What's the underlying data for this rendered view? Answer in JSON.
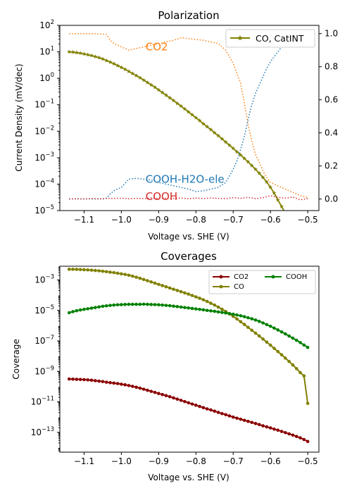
{
  "chart_data": [
    {
      "type": "line",
      "title": "Polarization",
      "xlabel": "Voltage vs. SHE (V)",
      "ylabel": "Current Density (mV/dec)",
      "xlim": [
        -1.165,
        -0.47
      ],
      "ylim_log": [
        -5,
        2
      ],
      "y2lim": [
        -0.07,
        1.05
      ],
      "x_ticks": [
        -1.1,
        -1.0,
        -0.9,
        -0.8,
        -0.7,
        -0.6,
        -0.5
      ],
      "x_tick_labels": [
        "−1.1",
        "−1.0",
        "−0.9",
        "−0.8",
        "−0.7",
        "−0.6",
        "−0.5"
      ],
      "y_ticks_exp": [
        -5,
        -4,
        -3,
        -2,
        -1,
        0,
        1,
        2
      ],
      "y_tick_labels": [
        "10",
        "10",
        "10",
        "10",
        "10",
        "10",
        "10",
        "10"
      ],
      "y_tick_exps": [
        "−5",
        "−4",
        "−3",
        "−2",
        "−1",
        "0",
        "1",
        "2"
      ],
      "y2_ticks": [
        0,
        0.2,
        0.4,
        0.6,
        0.8,
        1.0
      ],
      "y2_tick_labels": [
        "0.0",
        "0.2",
        "0.4",
        "0.6",
        "0.8",
        "1.0"
      ],
      "series": [
        {
          "name": "CO, CatINT",
          "axis": "left",
          "color": "#808000",
          "marker": "star",
          "x": [
            -1.14,
            -1.13,
            -1.12,
            -1.11,
            -1.1,
            -1.09,
            -1.08,
            -1.07,
            -1.06,
            -1.05,
            -1.04,
            -1.03,
            -1.02,
            -1.01,
            -1.0,
            -0.99,
            -0.98,
            -0.97,
            -0.96,
            -0.95,
            -0.94,
            -0.93,
            -0.92,
            -0.91,
            -0.9,
            -0.89,
            -0.88,
            -0.87,
            -0.86,
            -0.85,
            -0.84,
            -0.83,
            -0.82,
            -0.81,
            -0.8,
            -0.79,
            -0.78,
            -0.77,
            -0.76,
            -0.75,
            -0.74,
            -0.73,
            -0.72,
            -0.71,
            -0.7,
            -0.69,
            -0.68,
            -0.67,
            -0.66,
            -0.65,
            -0.64,
            -0.63,
            -0.62,
            -0.61,
            -0.6,
            -0.59,
            -0.58,
            -0.57,
            -0.56
          ],
          "log10_y": [
            1.0,
            0.99,
            0.97,
            0.95,
            0.92,
            0.89,
            0.86,
            0.82,
            0.78,
            0.73,
            0.67,
            0.61,
            0.55,
            0.48,
            0.41,
            0.34,
            0.26,
            0.18,
            0.1,
            0.02,
            -0.07,
            -0.16,
            -0.25,
            -0.34,
            -0.44,
            -0.54,
            -0.64,
            -0.74,
            -0.84,
            -0.95,
            -1.05,
            -1.16,
            -1.27,
            -1.38,
            -1.49,
            -1.6,
            -1.72,
            -1.83,
            -1.94,
            -2.06,
            -2.17,
            -2.29,
            -2.41,
            -2.53,
            -2.65,
            -2.78,
            -2.9,
            -3.03,
            -3.16,
            -3.3,
            -3.44,
            -3.59,
            -3.75,
            -3.92,
            -4.12,
            -4.34,
            -4.6,
            -4.85,
            -5.1
          ]
        },
        {
          "name": "CO2",
          "axis": "right",
          "color": "#ff7f0e",
          "style": "dotted",
          "x": [
            -1.14,
            -1.12,
            -1.1,
            -1.08,
            -1.06,
            -1.04,
            -1.03,
            -1.02,
            -1.0,
            -0.98,
            -0.96,
            -0.94,
            -0.92,
            -0.9,
            -0.88,
            -0.86,
            -0.84,
            -0.82,
            -0.8,
            -0.78,
            -0.76,
            -0.74,
            -0.72,
            -0.7,
            -0.68,
            -0.67,
            -0.66,
            -0.65,
            -0.64,
            -0.63,
            -0.62,
            -0.61,
            -0.6,
            -0.59,
            -0.58,
            -0.57,
            -0.56,
            -0.55,
            -0.54,
            -0.53,
            -0.52,
            -0.51,
            -0.5
          ],
          "y": [
            1.0,
            1.0,
            1.0,
            1.0,
            0.999,
            0.995,
            0.96,
            0.94,
            0.92,
            0.9,
            0.91,
            0.92,
            0.93,
            0.94,
            0.95,
            0.96,
            0.975,
            0.97,
            0.965,
            0.96,
            0.95,
            0.94,
            0.9,
            0.82,
            0.7,
            0.58,
            0.45,
            0.35,
            0.27,
            0.22,
            0.17,
            0.13,
            0.1,
            0.09,
            0.08,
            0.07,
            0.06,
            0.05,
            0.04,
            0.03,
            0.02,
            0.015,
            0.01
          ]
        },
        {
          "name": "COOH-H2O-ele",
          "axis": "right",
          "color": "#1f77b4",
          "style": "dotted",
          "x": [
            -1.14,
            -1.1,
            -1.06,
            -1.05,
            -1.04,
            -1.03,
            -1.02,
            -1.0,
            -0.98,
            -0.96,
            -0.94,
            -0.92,
            -0.9,
            -0.88,
            -0.86,
            -0.84,
            -0.82,
            -0.8,
            -0.78,
            -0.76,
            -0.74,
            -0.72,
            -0.7,
            -0.69,
            -0.68,
            -0.67,
            -0.66,
            -0.65,
            -0.64,
            -0.63,
            -0.62,
            -0.61,
            -0.6,
            -0.59,
            -0.58,
            -0.57,
            -0.56,
            -0.55,
            -0.54,
            -0.53,
            -0.52,
            -0.51,
            -0.5
          ],
          "y": [
            0.0,
            0.0,
            0.0,
            0.0,
            0.005,
            0.03,
            0.05,
            0.07,
            0.12,
            0.125,
            0.12,
            0.115,
            0.1,
            0.09,
            0.08,
            0.07,
            0.06,
            0.045,
            0.05,
            0.06,
            0.07,
            0.1,
            0.18,
            0.23,
            0.3,
            0.38,
            0.48,
            0.57,
            0.64,
            0.69,
            0.74,
            0.79,
            0.83,
            0.86,
            0.89,
            0.92,
            0.94,
            0.96,
            0.97,
            0.98,
            0.99,
            1.0,
            1.0
          ]
        },
        {
          "name": "COOH",
          "axis": "right",
          "color": "#d62728",
          "style": "dotted",
          "x": [
            -1.14,
            -1.12,
            -1.1,
            -1.08,
            -1.06,
            -1.04,
            -1.02,
            -1.0,
            -0.98,
            -0.96,
            -0.94,
            -0.92,
            -0.9,
            -0.88,
            -0.86,
            -0.84,
            -0.82,
            -0.8,
            -0.78,
            -0.76,
            -0.74,
            -0.72,
            -0.7,
            -0.68,
            -0.66,
            -0.64,
            -0.62,
            -0.6,
            -0.58,
            -0.56,
            -0.54,
            -0.52,
            -0.5
          ],
          "y": [
            0.0,
            0.002,
            0.0,
            0.003,
            0.001,
            0.004,
            0.003,
            0.005,
            0.002,
            0.004,
            0.003,
            0.006,
            0.002,
            0.005,
            0.004,
            0.006,
            0.002,
            0.005,
            0.003,
            0.006,
            0.004,
            0.002,
            0.008,
            0.004,
            0.01,
            0.002,
            0.008,
            0.02,
            0.01,
            0.005,
            0.012,
            -0.005,
            0.003
          ]
        }
      ],
      "legend": {
        "position": "top-right",
        "entries": [
          "CO, CatINT"
        ]
      },
      "annotations": [
        {
          "text": "CO2",
          "color": "#ff7f0e",
          "x": -0.935,
          "y": 0.92
        },
        {
          "text": "COOH-H2O-ele",
          "color": "#1f77b4",
          "x": -0.935,
          "y": 0.12
        },
        {
          "text": "COOH",
          "color": "#d62728",
          "x": -0.935,
          "y": 0.015
        }
      ]
    },
    {
      "type": "line",
      "title": "Coverages",
      "xlabel": "Voltage vs. SHE (V)",
      "ylabel": "Coverage",
      "xlim": [
        -1.165,
        -0.47
      ],
      "ylim_log": [
        -14.3,
        -2.1
      ],
      "x_ticks": [
        -1.1,
        -1.0,
        -0.9,
        -0.8,
        -0.7,
        -0.6,
        -0.5
      ],
      "x_tick_labels": [
        "−1.1",
        "−1.0",
        "−0.9",
        "−0.8",
        "−0.7",
        "−0.6",
        "−0.5"
      ],
      "y_ticks_exp": [
        -13,
        -11,
        -9,
        -7,
        -5,
        -3
      ],
      "y_tick_labels": [
        "10",
        "10",
        "10",
        "10",
        "10",
        "10"
      ],
      "y_tick_exps": [
        "−13",
        "−11",
        "−9",
        "−7",
        "−5",
        "−3"
      ],
      "series": [
        {
          "name": "CO2",
          "color": "#8b0000",
          "x": [
            -1.14,
            -1.13,
            -1.12,
            -1.11,
            -1.1,
            -1.09,
            -1.08,
            -1.07,
            -1.06,
            -1.05,
            -1.04,
            -1.03,
            -1.02,
            -1.01,
            -1.0,
            -0.99,
            -0.98,
            -0.97,
            -0.96,
            -0.95,
            -0.94,
            -0.93,
            -0.92,
            -0.91,
            -0.9,
            -0.89,
            -0.88,
            -0.87,
            -0.86,
            -0.85,
            -0.84,
            -0.83,
            -0.82,
            -0.81,
            -0.8,
            -0.79,
            -0.78,
            -0.77,
            -0.76,
            -0.75,
            -0.74,
            -0.73,
            -0.72,
            -0.71,
            -0.7,
            -0.69,
            -0.68,
            -0.67,
            -0.66,
            -0.65,
            -0.64,
            -0.63,
            -0.62,
            -0.61,
            -0.6,
            -0.59,
            -0.58,
            -0.57,
            -0.56,
            -0.55,
            -0.54,
            -0.53,
            -0.52,
            -0.51,
            -0.5
          ],
          "log10_y": [
            -9.5,
            -9.51,
            -9.52,
            -9.53,
            -9.54,
            -9.56,
            -9.58,
            -9.61,
            -9.64,
            -9.67,
            -9.71,
            -9.74,
            -9.77,
            -9.8,
            -9.84,
            -9.88,
            -9.93,
            -9.98,
            -10.04,
            -10.1,
            -10.17,
            -10.24,
            -10.31,
            -10.38,
            -10.45,
            -10.52,
            -10.59,
            -10.66,
            -10.74,
            -10.82,
            -10.9,
            -10.98,
            -11.06,
            -11.14,
            -11.22,
            -11.3,
            -11.38,
            -11.46,
            -11.53,
            -11.61,
            -11.69,
            -11.77,
            -11.84,
            -11.92,
            -12.0,
            -12.07,
            -12.14,
            -12.21,
            -12.28,
            -12.35,
            -12.42,
            -12.49,
            -12.57,
            -12.64,
            -12.71,
            -12.79,
            -12.86,
            -12.94,
            -13.02,
            -13.1,
            -13.18,
            -13.27,
            -13.36,
            -13.47,
            -13.6
          ]
        },
        {
          "name": "CO",
          "color": "#808000",
          "x": [
            -1.14,
            -1.13,
            -1.12,
            -1.11,
            -1.1,
            -1.09,
            -1.08,
            -1.07,
            -1.06,
            -1.05,
            -1.04,
            -1.03,
            -1.02,
            -1.01,
            -1.0,
            -0.99,
            -0.98,
            -0.97,
            -0.96,
            -0.95,
            -0.94,
            -0.93,
            -0.92,
            -0.91,
            -0.9,
            -0.89,
            -0.88,
            -0.87,
            -0.86,
            -0.85,
            -0.84,
            -0.83,
            -0.82,
            -0.81,
            -0.8,
            -0.79,
            -0.78,
            -0.77,
            -0.76,
            -0.75,
            -0.74,
            -0.73,
            -0.72,
            -0.71,
            -0.7,
            -0.69,
            -0.68,
            -0.67,
            -0.66,
            -0.65,
            -0.64,
            -0.63,
            -0.62,
            -0.61,
            -0.6,
            -0.59,
            -0.58,
            -0.57,
            -0.56,
            -0.55,
            -0.54,
            -0.53,
            -0.52,
            -0.51,
            -0.5
          ],
          "log10_y": [
            -2.3,
            -2.3,
            -2.31,
            -2.32,
            -2.33,
            -2.34,
            -2.36,
            -2.38,
            -2.4,
            -2.43,
            -2.46,
            -2.49,
            -2.52,
            -2.56,
            -2.6,
            -2.64,
            -2.69,
            -2.75,
            -2.82,
            -2.89,
            -2.97,
            -3.05,
            -3.13,
            -3.21,
            -3.29,
            -3.37,
            -3.45,
            -3.53,
            -3.61,
            -3.69,
            -3.77,
            -3.85,
            -3.93,
            -4.02,
            -4.11,
            -4.2,
            -4.3,
            -4.41,
            -4.53,
            -4.65,
            -4.78,
            -4.92,
            -5.07,
            -5.23,
            -5.39,
            -5.56,
            -5.74,
            -5.92,
            -6.11,
            -6.3,
            -6.49,
            -6.68,
            -6.88,
            -7.08,
            -7.28,
            -7.49,
            -7.7,
            -7.91,
            -8.13,
            -8.35,
            -8.58,
            -8.82,
            -9.08,
            -9.3,
            -11.1
          ]
        },
        {
          "name": "COOH",
          "color": "#008000",
          "x": [
            -1.14,
            -1.13,
            -1.12,
            -1.11,
            -1.1,
            -1.09,
            -1.08,
            -1.07,
            -1.06,
            -1.05,
            -1.04,
            -1.03,
            -1.02,
            -1.01,
            -1.0,
            -0.99,
            -0.98,
            -0.97,
            -0.96,
            -0.95,
            -0.94,
            -0.93,
            -0.92,
            -0.91,
            -0.9,
            -0.89,
            -0.88,
            -0.87,
            -0.86,
            -0.85,
            -0.84,
            -0.83,
            -0.82,
            -0.81,
            -0.8,
            -0.79,
            -0.78,
            -0.77,
            -0.76,
            -0.75,
            -0.74,
            -0.73,
            -0.72,
            -0.71,
            -0.7,
            -0.69,
            -0.68,
            -0.67,
            -0.66,
            -0.65,
            -0.64,
            -0.63,
            -0.62,
            -0.61,
            -0.6,
            -0.59,
            -0.58,
            -0.57,
            -0.56,
            -0.55,
            -0.54,
            -0.53,
            -0.52,
            -0.51,
            -0.5
          ],
          "log10_y": [
            -5.15,
            -5.08,
            -5.02,
            -4.97,
            -4.93,
            -4.89,
            -4.85,
            -4.81,
            -4.77,
            -4.73,
            -4.7,
            -4.67,
            -4.65,
            -4.63,
            -4.62,
            -4.61,
            -4.6,
            -4.6,
            -4.6,
            -4.6,
            -4.59,
            -4.6,
            -4.61,
            -4.62,
            -4.63,
            -4.65,
            -4.67,
            -4.69,
            -4.72,
            -4.75,
            -4.78,
            -4.81,
            -4.84,
            -4.87,
            -4.9,
            -4.93,
            -4.96,
            -5.0,
            -5.03,
            -5.06,
            -5.1,
            -5.13,
            -5.17,
            -5.21,
            -5.25,
            -5.3,
            -5.35,
            -5.41,
            -5.48,
            -5.55,
            -5.63,
            -5.72,
            -5.82,
            -5.93,
            -6.04,
            -6.16,
            -6.28,
            -6.41,
            -6.54,
            -6.68,
            -6.82,
            -6.96,
            -7.11,
            -7.27,
            -7.43
          ]
        }
      ],
      "legend": {
        "position": "top-right",
        "columns": 2,
        "entries": [
          "CO2",
          "CO",
          "COOH"
        ]
      }
    }
  ]
}
